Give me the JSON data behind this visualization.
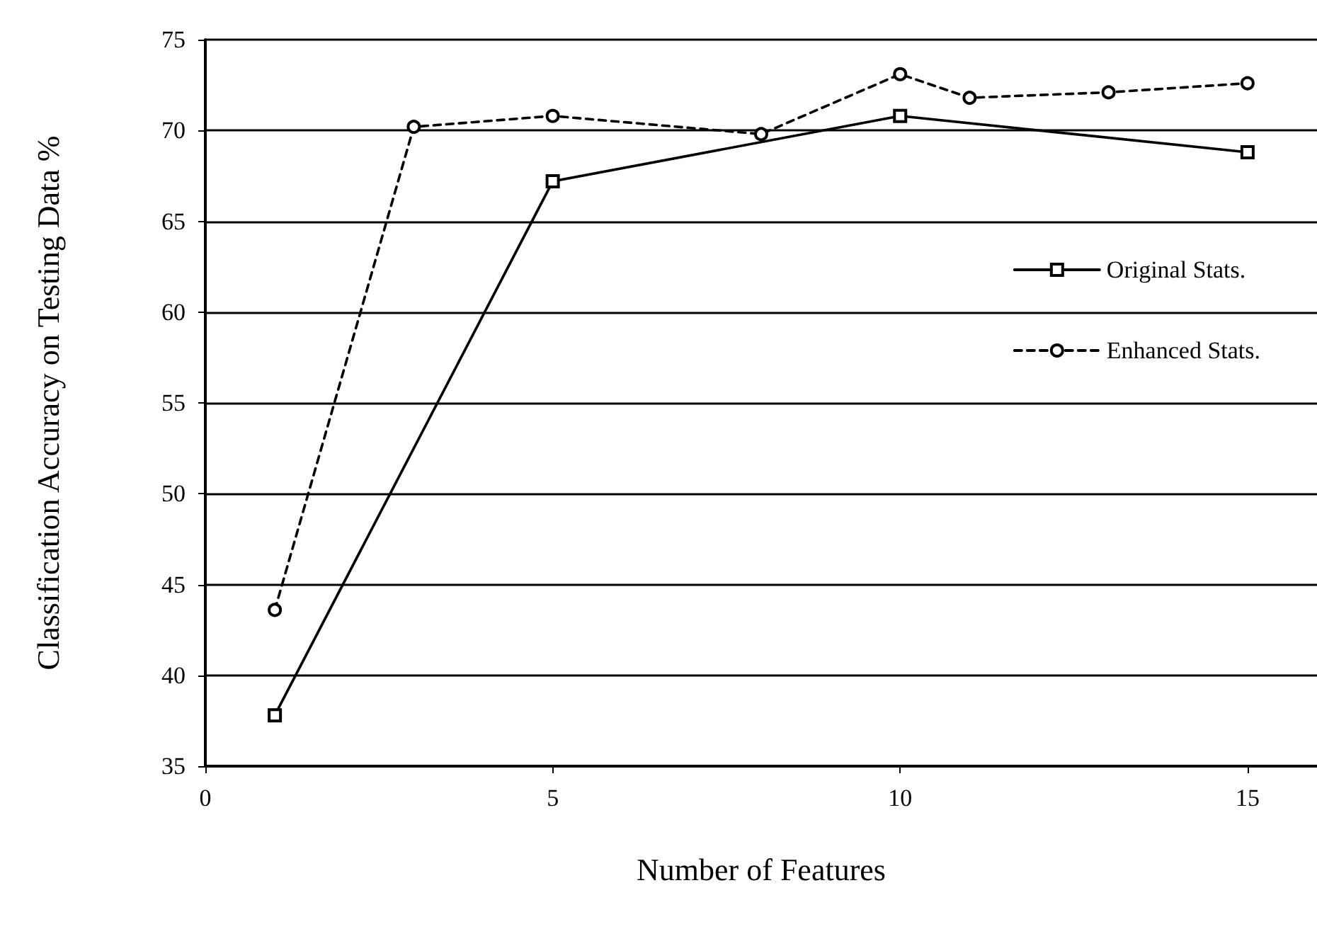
{
  "chart_data": {
    "type": "line",
    "xlabel": "Number of Features",
    "ylabel": "Classification Accuracy on Testing Data %",
    "xlim": [
      0,
      16
    ],
    "xticks": [
      0,
      5,
      10,
      15
    ],
    "ylim": [
      35,
      75
    ],
    "yticks": [
      35,
      40,
      45,
      50,
      55,
      60,
      65,
      70,
      75
    ],
    "grid": "y",
    "legend": "right",
    "series": [
      {
        "name": "Original Stats.",
        "color": "#000000",
        "marker": "square",
        "line_style": "solid",
        "x": [
          1,
          5,
          10,
          15
        ],
        "values": [
          37.8,
          67.2,
          70.8,
          68.8
        ]
      },
      {
        "name": "Enhanced Stats.",
        "color": "#000000",
        "marker": "circle",
        "line_style": "dashed",
        "x": [
          1,
          3,
          5,
          8,
          10,
          11,
          13,
          15
        ],
        "values": [
          43.6,
          70.2,
          70.8,
          69.8,
          73.1,
          71.8,
          72.1,
          72.6
        ]
      }
    ]
  }
}
